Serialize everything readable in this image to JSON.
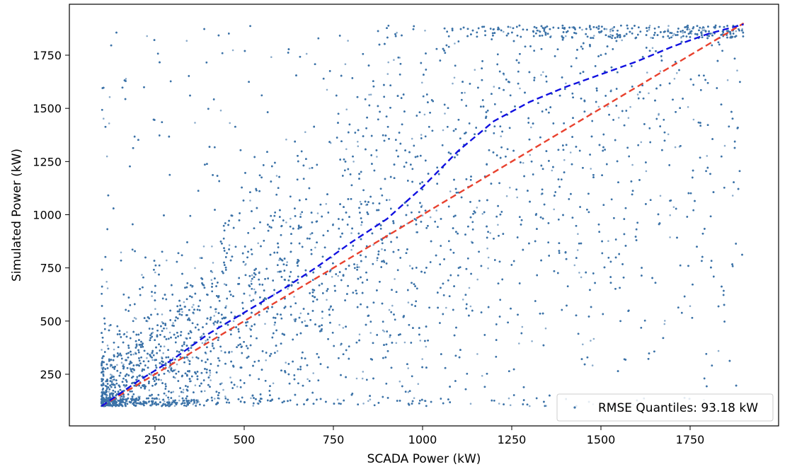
{
  "chart_data": {
    "type": "scatter",
    "xlabel": "SCADA Power (kW)",
    "ylabel": "Simulated Power (kW)",
    "xlim": [
      0,
      1900
    ],
    "ylim": [
      0,
      1900
    ],
    "xticks": [
      250,
      500,
      750,
      1000,
      1250,
      1500,
      1750
    ],
    "yticks": [
      250,
      500,
      750,
      1000,
      1250,
      1500,
      1750
    ],
    "grid": false,
    "legend_position": "lower-right",
    "scatter": {
      "name": "RMSE Quantiles: 93.18 kW",
      "color": "#3c73a8",
      "point_count": 16000,
      "x_range": [
        100,
        1900
      ],
      "y_range": [
        100,
        1890
      ],
      "description_density": "densest near low power, spreading widely at higher SCADA power"
    },
    "quantile_curve": {
      "color": "#1010e0",
      "style": "dashed",
      "x": [
        100,
        200,
        300,
        400,
        500,
        600,
        700,
        800,
        900,
        1000,
        1100,
        1200,
        1300,
        1400,
        1500,
        1600,
        1700,
        1800,
        1900
      ],
      "y": [
        100,
        215,
        320,
        440,
        540,
        640,
        750,
        870,
        980,
        1130,
        1300,
        1440,
        1530,
        1600,
        1660,
        1720,
        1790,
        1850,
        1895
      ]
    },
    "identity_line": {
      "color": "#e8412e",
      "style": "dashed",
      "x": [
        100,
        1900
      ],
      "y": [
        100,
        1900
      ]
    }
  }
}
